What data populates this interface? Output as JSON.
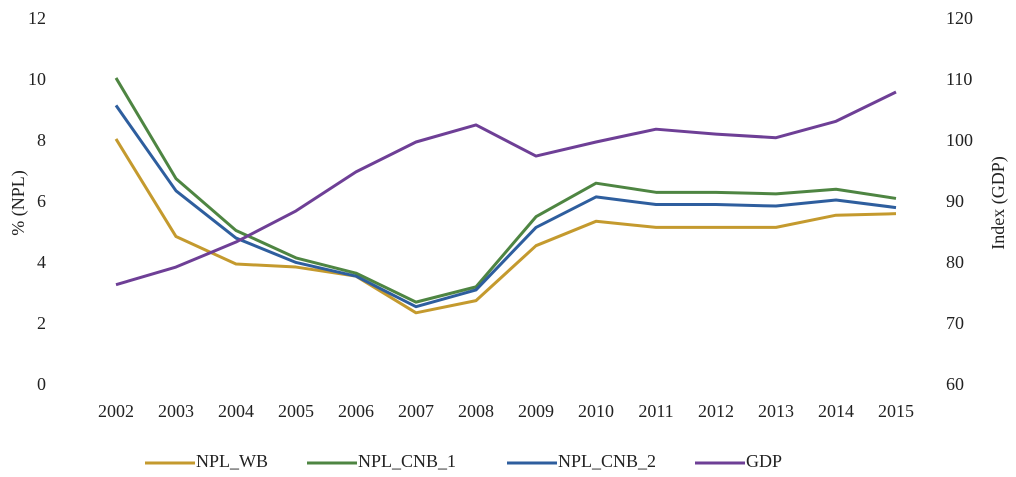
{
  "chart_data": {
    "type": "line",
    "categories": [
      "2002",
      "2003",
      "2004",
      "2005",
      "2006",
      "2007",
      "2008",
      "2009",
      "2010",
      "2011",
      "2012",
      "2013",
      "2014",
      "2015"
    ],
    "ylabel": "% (NPL)",
    "y2label": "Index (GDP)",
    "ylim": [
      0,
      12
    ],
    "yticks": [
      0,
      2,
      4,
      6,
      8,
      10,
      12
    ],
    "y2lim": [
      60,
      120
    ],
    "y2ticks": [
      60,
      70,
      80,
      90,
      100,
      110,
      120
    ],
    "grid": false,
    "legend": "bottom",
    "series": [
      {
        "name": "NPL_WB",
        "color": "#c49a2e",
        "values": [
          8.1,
          4.9,
          4.0,
          3.9,
          3.6,
          2.4,
          2.8,
          4.6,
          5.4,
          5.2,
          5.2,
          5.2,
          5.6,
          5.65
        ]
      },
      {
        "name": "NPL_CNB_1",
        "color": "#4e8542",
        "values": [
          10.1,
          6.8,
          5.1,
          4.2,
          3.7,
          2.75,
          3.25,
          5.55,
          6.65,
          6.35,
          6.35,
          6.3,
          6.45,
          6.15
        ]
      },
      {
        "name": "NPL_CNB_2",
        "color": "#2e5e9e",
        "values": [
          9.2,
          6.4,
          4.85,
          4.05,
          3.6,
          2.6,
          3.15,
          5.2,
          6.2,
          5.95,
          5.95,
          5.9,
          6.1,
          5.85
        ]
      },
      {
        "name": "GDP",
        "color": "#6e3f96",
        "axis": "y2",
        "values": [
          76.6,
          79.5,
          83.6,
          88.7,
          95.1,
          100,
          102.8,
          97.7,
          100,
          102.1,
          101.3,
          100.7,
          103.4,
          108.2
        ]
      }
    ]
  }
}
